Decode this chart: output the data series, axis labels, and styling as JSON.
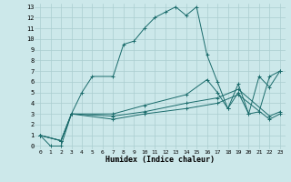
{
  "xlabel": "Humidex (Indice chaleur)",
  "bg_color": "#cce8ea",
  "grid_color": "#aacdd0",
  "line_color": "#1a6b6b",
  "xlim": [
    -0.5,
    23.5
  ],
  "ylim": [
    -0.3,
    13.3
  ],
  "xticks": [
    0,
    1,
    2,
    3,
    4,
    5,
    6,
    7,
    8,
    9,
    10,
    11,
    12,
    13,
    14,
    15,
    16,
    17,
    18,
    19,
    20,
    21,
    22,
    23
  ],
  "yticks": [
    0,
    1,
    2,
    3,
    4,
    5,
    6,
    7,
    8,
    9,
    10,
    11,
    12,
    13
  ],
  "line1_x": [
    0,
    1,
    2,
    3,
    4,
    5,
    7,
    8,
    9,
    10,
    11,
    12,
    13,
    14,
    15,
    16,
    17,
    18,
    19,
    20,
    21,
    22,
    23
  ],
  "line1_y": [
    1,
    0,
    0,
    3,
    5,
    6.5,
    6.5,
    9.5,
    9.8,
    11.0,
    12.0,
    12.5,
    13.0,
    12.2,
    13.0,
    8.5,
    6.0,
    3.5,
    5.0,
    3.0,
    6.5,
    5.5,
    7.0
  ],
  "line2_x": [
    0,
    2,
    3,
    7,
    10,
    14,
    16,
    17,
    18,
    19,
    20,
    21,
    22,
    23
  ],
  "line2_y": [
    1,
    0.5,
    3.0,
    3.0,
    3.8,
    4.8,
    6.2,
    5.0,
    3.5,
    5.8,
    3.0,
    3.2,
    6.5,
    7.0
  ],
  "line3_x": [
    0,
    2,
    3,
    7,
    10,
    14,
    17,
    19,
    22,
    23
  ],
  "line3_y": [
    1,
    0.5,
    3.0,
    2.8,
    3.2,
    4.0,
    4.5,
    5.3,
    2.8,
    3.2
  ],
  "line4_x": [
    0,
    2,
    3,
    7,
    10,
    14,
    17,
    19,
    22,
    23
  ],
  "line4_y": [
    1,
    0.5,
    3.0,
    2.5,
    3.0,
    3.5,
    4.0,
    4.8,
    2.5,
    3.0
  ]
}
